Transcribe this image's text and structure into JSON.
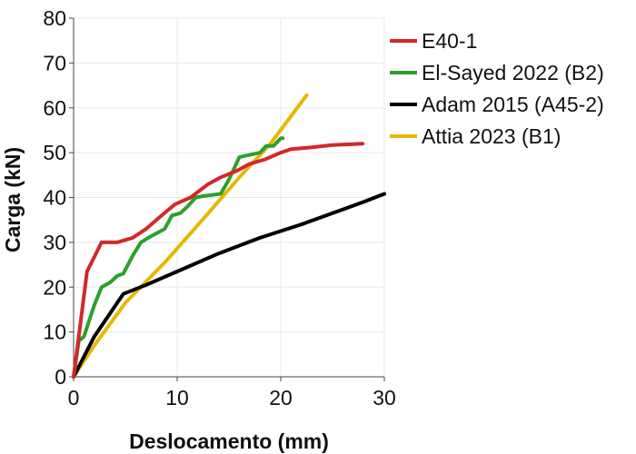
{
  "chart_data": {
    "type": "line",
    "title": "",
    "xlabel": "Deslocamento (mm)",
    "ylabel": "Carga (kN)",
    "xlim": [
      0,
      30
    ],
    "ylim": [
      0,
      80
    ],
    "xticks": [
      0,
      10,
      20,
      30
    ],
    "yticks": [
      0,
      10,
      20,
      30,
      40,
      50,
      60,
      70,
      80
    ],
    "grid": true,
    "legend_position": "top-right",
    "series": [
      {
        "name": "E40-1",
        "color": "#d62728",
        "x": [
          0,
          0.5,
          1.3,
          2.7,
          4.2,
          5.7,
          7.0,
          8.5,
          9.8,
          11.3,
          13.0,
          14.2,
          15.8,
          17.0,
          18.5,
          20.0,
          21.0,
          23.0,
          25.0,
          27.9
        ],
        "y": [
          0,
          9,
          23.5,
          30,
          30,
          31,
          33,
          36,
          38.5,
          40,
          43,
          44.5,
          46,
          47.5,
          48.5,
          50,
          50.8,
          51.2,
          51.7,
          52
        ]
      },
      {
        "name": "El-Sayed 2022 (B2)",
        "color": "#2ca02c",
        "x": [
          0,
          0.5,
          1.0,
          2.0,
          2.7,
          3.5,
          4.2,
          4.8,
          5.7,
          6.5,
          7.2,
          8.0,
          8.8,
          9.5,
          10.3,
          11.0,
          11.8,
          12.5,
          14.2,
          15.0,
          16.0,
          17.0,
          18.0,
          18.6,
          19.3,
          20.0,
          20.2
        ],
        "y": [
          0,
          8,
          9,
          16,
          20,
          21,
          22.5,
          23,
          27,
          30,
          31,
          32,
          33,
          36,
          36.5,
          38,
          40,
          40.3,
          40.8,
          44,
          49,
          49.5,
          50,
          51.5,
          51.5,
          53.2,
          53.2
        ]
      },
      {
        "name": "Adam 2015 (A45-2)",
        "color": "#000000",
        "x": [
          0,
          2.0,
          4.8,
          7.0,
          10.0,
          14.0,
          18.0,
          22.0,
          25.0,
          28.0,
          30.0
        ],
        "y": [
          0,
          9,
          18.5,
          20.5,
          23.5,
          27.5,
          31,
          34,
          36.5,
          39,
          40.8
        ]
      },
      {
        "name": "Attia 2023 (B1)",
        "color": "#e6b800",
        "x": [
          0,
          2.0,
          5.0,
          9.0,
          13.0,
          16.0,
          19.0,
          22.5
        ],
        "y": [
          0,
          7,
          16.5,
          26,
          36.5,
          44.5,
          52,
          62.8
        ]
      }
    ]
  }
}
